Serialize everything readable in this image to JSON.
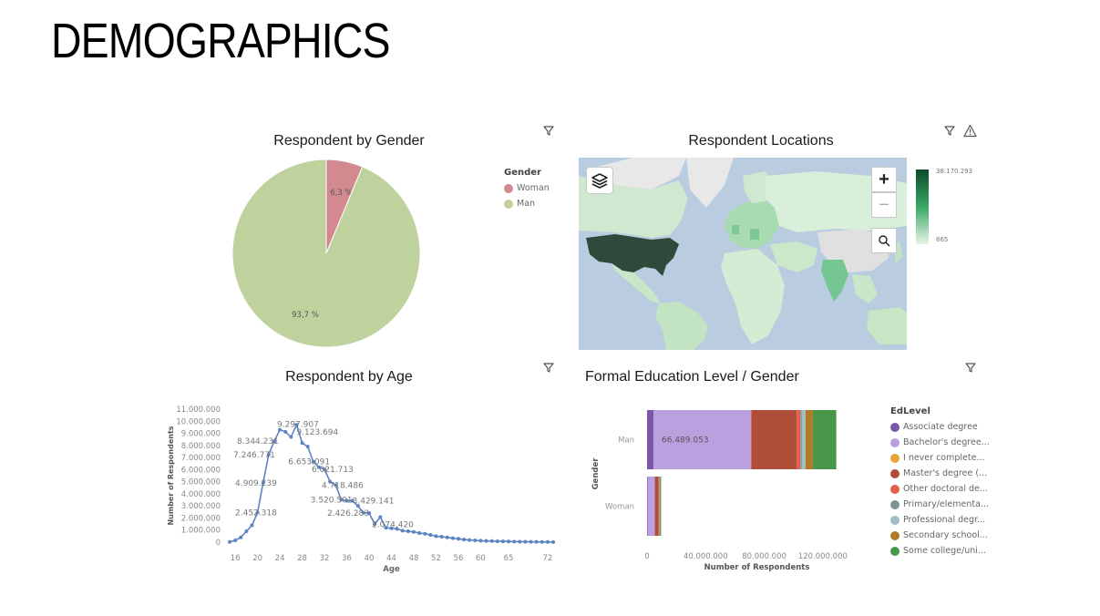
{
  "page": {
    "title": "DEMOGRAPHICS"
  },
  "gender_panel": {
    "title": "Respondent by Gender"
  },
  "locations_panel": {
    "title": "Respondent Locations",
    "scale_max": "38.170.293",
    "scale_min": "865",
    "zoom_in": "+",
    "zoom_out": "−"
  },
  "age_panel": {
    "title": "Respondent by Age"
  },
  "education_panel": {
    "title": "Formal Education Level / Gender"
  },
  "colors": {
    "woman": "#d28a90",
    "man": "#bfd19c",
    "line": "#5b84c0",
    "map_dark": "#2e4a3a"
  },
  "chart_data": [
    {
      "type": "pie",
      "slices": [
        {
          "label": "Woman",
          "value": 6.3,
          "display": "6,3 %",
          "color": "#d28a90"
        },
        {
          "label": "Man",
          "value": 93.7,
          "display": "93,7 %",
          "color": "#bfd19c"
        }
      ],
      "legend": {
        "title": "Gender",
        "position": "right"
      }
    },
    {
      "type": "line",
      "xlabel": "Age",
      "ylabel": "Number of Respondents",
      "ylim": [
        0,
        11000000
      ],
      "yticks": [
        "0",
        "1.000.000",
        "2.000.000",
        "3.000.000",
        "4.000.000",
        "5.000.000",
        "6.000.000",
        "7.000.000",
        "8.000.000",
        "9.000.000",
        "10.000.000",
        "11.000.000"
      ],
      "xticks": [
        "16",
        "20",
        "24",
        "28",
        "32",
        "36",
        "40",
        "44",
        "48",
        "52",
        "56",
        "60",
        "65",
        "72"
      ],
      "x": [
        15,
        16,
        17,
        18,
        19,
        20,
        21,
        22,
        23,
        24,
        25,
        26,
        27,
        28,
        29,
        30,
        31,
        32,
        33,
        34,
        35,
        36,
        37,
        38,
        39,
        40,
        41,
        42,
        43,
        44,
        45,
        46,
        47,
        48,
        49,
        50,
        51,
        52,
        53,
        54,
        55,
        56,
        57,
        58,
        59,
        60,
        61,
        62,
        63,
        64,
        65,
        66,
        67,
        68,
        69,
        70,
        71,
        72,
        73
      ],
      "y": [
        20000,
        150000,
        400000,
        900000,
        1400000,
        2452318,
        4909239,
        7246771,
        8344231,
        9297907,
        9123694,
        8700000,
        9700000,
        8200000,
        7900000,
        6653091,
        6200000,
        6021713,
        5000000,
        4718486,
        3520501,
        3429141,
        3429141,
        3000000,
        2426283,
        2400000,
        1500000,
        2074420,
        1200000,
        1150000,
        1100000,
        950000,
        900000,
        850000,
        750000,
        700000,
        600000,
        500000,
        450000,
        400000,
        330000,
        280000,
        220000,
        180000,
        150000,
        120000,
        100000,
        90000,
        80000,
        70000,
        60000,
        50000,
        40000,
        35000,
        30000,
        25000,
        20000,
        15000,
        10000
      ],
      "labels": [
        "2.452.318",
        "4.909.239",
        "7.246.771",
        "8.344.231",
        "9.297.907",
        "9.123.694",
        "6.653.091",
        "6.021.713",
        "4.718.486",
        "3.520.501",
        "3.429.141",
        "2.426.283",
        "2.074.420"
      ]
    },
    {
      "type": "bar",
      "orientation": "horizontal",
      "stacked": true,
      "categories": [
        "Man",
        "Woman"
      ],
      "xlabel": "Number of Respondents",
      "ylabel": "Gender",
      "xticks": [
        "0",
        "40.000.000",
        "80.000.000",
        "120.000.000"
      ],
      "xlim": [
        0,
        140000000
      ],
      "legend": {
        "title": "EdLevel",
        "position": "right"
      },
      "series": [
        {
          "name": "Associate degree",
          "color": "#7a55a8",
          "values": [
            4500000,
            500000
          ]
        },
        {
          "name": "Bachelor's degree...",
          "color": "#bba0e0",
          "values": [
            66489053,
            4800000
          ]
        },
        {
          "name": "I never complete...",
          "color": "#e8a23a",
          "values": [
            200000,
            50000
          ]
        },
        {
          "name": "Master's degree (...",
          "color": "#b04e3a",
          "values": [
            31000000,
            2600000
          ]
        },
        {
          "name": "Other doctoral de...",
          "color": "#e2604d",
          "values": [
            2500000,
            300000
          ]
        },
        {
          "name": "Primary/elementa...",
          "color": "#7d9494",
          "values": [
            1000000,
            100000
          ]
        },
        {
          "name": "Professional degr...",
          "color": "#9fbfc4",
          "values": [
            2500000,
            200000
          ]
        },
        {
          "name": "Secondary school...",
          "color": "#b07a2a",
          "values": [
            5000000,
            400000
          ]
        },
        {
          "name": "Some college/uni...",
          "color": "#4a9648",
          "values": [
            16000000,
            600000
          ]
        }
      ],
      "labels": [
        "66.489.053"
      ]
    }
  ]
}
